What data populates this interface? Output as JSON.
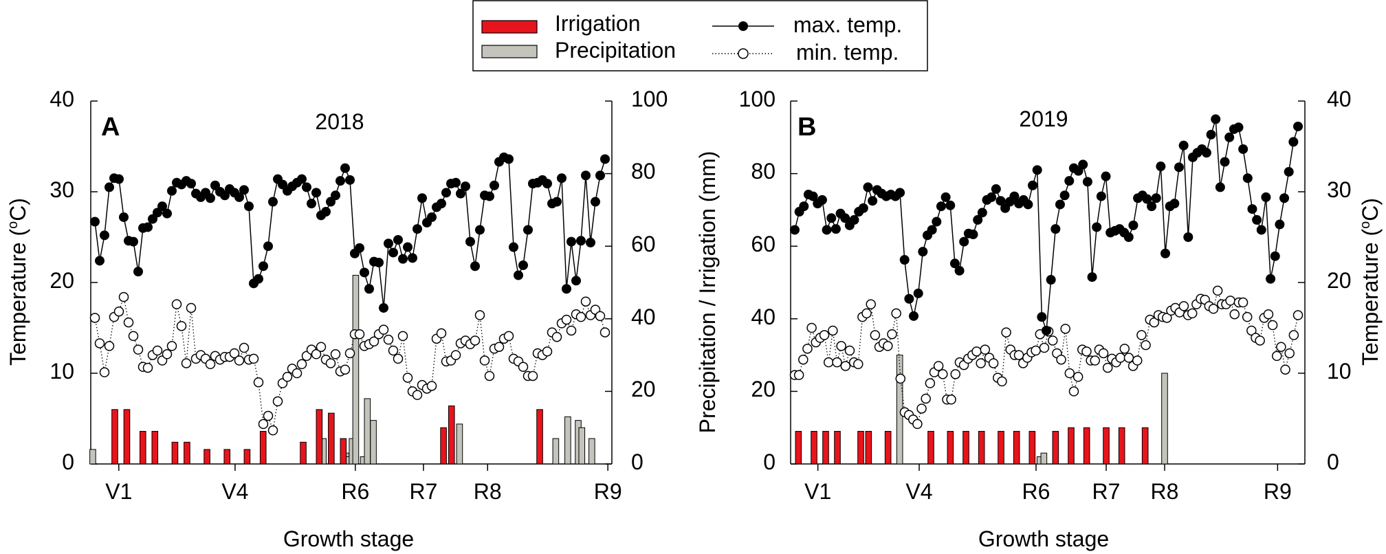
{
  "legend": {
    "irrigation": "Irrigation",
    "precipitation": "Precipitation",
    "max_temp": "max. temp.",
    "min_temp": "min. temp."
  },
  "colors": {
    "irrigation": "#e8141c",
    "precipitation": "#c4c4bc",
    "line": "#000000"
  },
  "chart_data": [
    {
      "type": "bar+line",
      "panel_label": "A",
      "title": "2018",
      "xlabel": "Growth stage",
      "ylabel_left": "Temperature (",
      "ylabel_left_sup": "o",
      "ylabel_left_end": "C)",
      "ylim_left": [
        0,
        40
      ],
      "yticks_left": [
        "0",
        "10",
        "20",
        "30",
        "40"
      ],
      "ylim_right": [
        0,
        100
      ],
      "yticks_right": [
        "0",
        "20",
        "40",
        "60",
        "80",
        "100"
      ],
      "n_days": 131,
      "stages": [
        {
          "label": "V1",
          "day": 7
        },
        {
          "label": "V4",
          "day": 36
        },
        {
          "label": "R6",
          "day": 66
        },
        {
          "label": "R7",
          "day": 83
        },
        {
          "label": "R8",
          "day": 99
        },
        {
          "label": "R9",
          "day": 129
        }
      ],
      "max_temp": [
        26.7,
        22.4,
        25.2,
        30.5,
        31.5,
        31.4,
        27.2,
        24.6,
        24.5,
        21.2,
        26.0,
        26.1,
        27.0,
        27.7,
        28.4,
        27.6,
        30.1,
        31.0,
        30.8,
        31.2,
        30.9,
        29.8,
        29.4,
        29.9,
        29.3,
        30.7,
        30.0,
        29.6,
        30.3,
        29.9,
        29.4,
        30.2,
        28.4,
        19.9,
        20.4,
        21.8,
        24.0,
        28.9,
        31.4,
        30.8,
        30.1,
        30.6,
        31.0,
        31.4,
        30.5,
        28.7,
        29.9,
        27.4,
        27.8,
        28.9,
        29.6,
        31.2,
        32.6,
        31.3,
        23.2,
        23.8,
        21.1,
        19.3,
        22.3,
        22.2,
        17.2,
        24.3,
        23.3,
        24.7,
        22.6,
        23.9,
        22.7,
        25.9,
        29.3,
        26.6,
        27.2,
        28.3,
        28.7,
        29.9,
        30.9,
        31.0,
        29.8,
        30.6,
        24.5,
        21.8,
        25.8,
        29.6,
        29.5,
        30.7,
        33.3,
        33.8,
        33.6,
        23.9,
        20.8,
        21.9,
        25.8,
        30.9,
        31.0,
        31.3,
        30.9,
        28.7,
        28.9,
        31.5,
        19.3,
        24.5,
        20.2,
        24.6,
        31.8,
        24.4,
        28.9,
        31.8,
        33.6
      ],
      "max_days": [
        0,
        1,
        2,
        3,
        4,
        5,
        6,
        7,
        8,
        9,
        10,
        11,
        12,
        13,
        14,
        15,
        16,
        17,
        18,
        19,
        20,
        21,
        22,
        23,
        24,
        25,
        26,
        27,
        28,
        29,
        30,
        31,
        32,
        33,
        34,
        35,
        36,
        37,
        38,
        39,
        40,
        41,
        42,
        43,
        44,
        45,
        46,
        47,
        48,
        49,
        50,
        51,
        52,
        53,
        54,
        55,
        56,
        57,
        58,
        59,
        60,
        61,
        62,
        63,
        64,
        65,
        66,
        67,
        68,
        69,
        70,
        71,
        72,
        73,
        74,
        75,
        76,
        77,
        78,
        79,
        80,
        81,
        82,
        83,
        84,
        85,
        86,
        87,
        88,
        89,
        90,
        91,
        92,
        93,
        94,
        95,
        96,
        97,
        98,
        99,
        100,
        101,
        102,
        103,
        104,
        105,
        106
      ],
      "min_temp": [
        16.1,
        13.3,
        10.1,
        13.0,
        16.2,
        16.8,
        18.4,
        15.6,
        14.1,
        12.6,
        10.7,
        10.6,
        12.0,
        12.5,
        11.4,
        12.1,
        13.0,
        17.6,
        15.2,
        11.1,
        17.2,
        11.6,
        12.0,
        11.6,
        11.0,
        11.9,
        11.5,
        11.8,
        11.8,
        12.2,
        11.4,
        12.8,
        11.5,
        11.6,
        9.0,
        4.4,
        5.3,
        3.7,
        6.9,
        8.9,
        9.6,
        10.5,
        10.0,
        11.0,
        11.9,
        12.6,
        12.1,
        12.9,
        11.5,
        11.1,
        12.1,
        10.2,
        10.4,
        12.2,
        14.3,
        14.3,
        13.0,
        13.2,
        13.5,
        14.3,
        14.8,
        13.7,
        12.5,
        11.6,
        14.1,
        9.5,
        8.0,
        7.6,
        8.7,
        8.3,
        8.6,
        13.8,
        14.4,
        11.3,
        11.4,
        12.0,
        13.3,
        13.6,
        13.2,
        13.6,
        16.4,
        11.4,
        9.7,
        12.7,
        12.9,
        13.8,
        14.1,
        11.6,
        11.3,
        10.7,
        9.7,
        9.7,
        12.2,
        12.0,
        12.4,
        14.5,
        14.0,
        15.5,
        15.9,
        14.7,
        16.5,
        16.2,
        17.9,
        16.4,
        17.0,
        16.3,
        14.5
      ],
      "irrigation": [
        {
          "day": 6,
          "value": 15
        },
        {
          "day": 9,
          "value": 15
        },
        {
          "day": 13,
          "value": 9
        },
        {
          "day": 16,
          "value": 9
        },
        {
          "day": 21,
          "value": 6
        },
        {
          "day": 24,
          "value": 6
        },
        {
          "day": 29,
          "value": 4
        },
        {
          "day": 34,
          "value": 4
        },
        {
          "day": 39,
          "value": 4
        },
        {
          "day": 43,
          "value": 9
        },
        {
          "day": 53,
          "value": 6
        },
        {
          "day": 57,
          "value": 15
        },
        {
          "day": 60,
          "value": 14
        },
        {
          "day": 63,
          "value": 7
        },
        {
          "day": 88,
          "value": 10
        },
        {
          "day": 90,
          "value": 16
        },
        {
          "day": 112,
          "value": 15
        }
      ],
      "precipitation": [
        {
          "day": 0.5,
          "value": 4
        },
        {
          "day": 58,
          "value": 7
        },
        {
          "day": 63.7,
          "value": 3
        },
        {
          "day": 64.4,
          "value": 2
        },
        {
          "day": 65.2,
          "value": 7
        },
        {
          "day": 66.1,
          "value": 52
        },
        {
          "day": 68,
          "value": 2
        },
        {
          "day": 69,
          "value": 18
        },
        {
          "day": 70.5,
          "value": 12
        },
        {
          "day": 92,
          "value": 11
        },
        {
          "day": 116,
          "value": 7
        },
        {
          "day": 119,
          "value": 13
        },
        {
          "day": 121.6,
          "value": 12
        },
        {
          "day": 122.5,
          "value": 10
        },
        {
          "day": 125,
          "value": 7
        }
      ]
    },
    {
      "type": "bar+line",
      "panel_label": "B",
      "title": "2019",
      "xlabel": "Growth stage",
      "ylabel_left": "Precipitation / Irrigation (mm)",
      "ylim_left": [
        0,
        100
      ],
      "yticks_left": [
        "0",
        "20",
        "40",
        "60",
        "80",
        "100"
      ],
      "ylabel_right": "Temperature (",
      "ylabel_right_sup": "o",
      "ylabel_right_end": "C)",
      "ylim_right": [
        0,
        40
      ],
      "yticks_right": [
        "0",
        "10",
        "20",
        "30",
        "40"
      ],
      "n_days": 133,
      "stages": [
        {
          "label": "V1",
          "day": 7
        },
        {
          "label": "V4",
          "day": 33
        },
        {
          "label": "R6",
          "day": 63
        },
        {
          "label": "R7",
          "day": 81
        },
        {
          "label": "R8",
          "day": 96
        },
        {
          "label": "R9",
          "day": 125
        }
      ],
      "max_temp": [
        25.8,
        27.8,
        28.4,
        29.7,
        29.5,
        28.7,
        29.1,
        25.8,
        27.1,
        25.9,
        27.6,
        27.1,
        26.3,
        26.9,
        27.8,
        28.2,
        30.5,
        29.0,
        30.2,
        29.8,
        29.5,
        29.7,
        29.5,
        29.9,
        22.5,
        18.2,
        16.3,
        18.8,
        23.4,
        25.2,
        25.8,
        26.7,
        28.4,
        29.4,
        28.5,
        22.1,
        21.3,
        24.5,
        25.4,
        25.3,
        26.9,
        27.7,
        29.1,
        29.4,
        30.3,
        29.0,
        28.2,
        28.9,
        29.5,
        28.7,
        29.1,
        28.6,
        30.7,
        32.4,
        16.2,
        14.7,
        20.3,
        25.9,
        28.6,
        29.6,
        31.2,
        32.6,
        32.3,
        33.0,
        31.1,
        20.6,
        26.1,
        29.5,
        31.7,
        25.5,
        25.7,
        25.9,
        25.5,
        25.0,
        26.3,
        29.3,
        29.6,
        29.2,
        28.4,
        29.3,
        32.8,
        23.2,
        28.4,
        28.7,
        32.7,
        35.1,
        25.0,
        33.8,
        34.3,
        34.7,
        34.3,
        36.3,
        38.0,
        30.5,
        33.3,
        36.0,
        36.9,
        37.1,
        34.7,
        31.5,
        28.1,
        26.9,
        25.8,
        29.4,
        20.4,
        22.9,
        26.4,
        29.3,
        32.2,
        35.5,
        37.2
      ],
      "max_days": [
        0,
        1,
        2,
        3,
        4,
        5,
        6,
        7,
        8,
        9,
        10,
        11,
        12,
        13,
        14,
        15,
        16,
        17,
        18,
        19,
        20,
        21,
        22,
        23,
        24,
        25,
        26,
        27,
        28,
        29,
        30,
        31,
        32,
        33,
        34,
        35,
        36,
        37,
        38,
        39,
        40,
        41,
        42,
        43,
        44,
        45,
        46,
        47,
        48,
        49,
        50,
        51,
        52,
        53,
        54,
        55,
        56,
        57,
        58,
        59,
        60,
        61,
        62,
        63,
        64,
        65,
        66,
        67,
        68,
        69,
        70,
        71,
        72,
        73,
        74,
        75,
        76,
        77,
        78,
        79,
        80,
        81,
        82,
        83,
        84,
        85,
        86,
        87,
        88,
        89,
        90,
        91,
        92,
        93,
        94,
        95,
        96,
        97,
        98,
        99,
        100,
        101,
        102,
        103,
        104,
        105,
        106,
        107,
        108,
        109,
        110
      ],
      "min_temp": [
        9.8,
        9.8,
        11.5,
        12.7,
        15.0,
        13.4,
        13.9,
        14.2,
        11.2,
        14.7,
        11.2,
        13.0,
        10.8,
        12.5,
        11.2,
        11.0,
        16.2,
        16.6,
        17.6,
        14.2,
        12.9,
        13.3,
        13.0,
        14.3,
        16.6,
        9.4,
        5.7,
        5.4,
        4.9,
        4.4,
        6.1,
        7.2,
        8.9,
        10.1,
        10.8,
        9.9,
        7.1,
        7.1,
        9.9,
        11.2,
        10.9,
        11.6,
        12.0,
        12.4,
        11.1,
        12.6,
        11.7,
        11.1,
        9.5,
        9.1,
        14.5,
        12.6,
        12.0,
        12.0,
        11.1,
        11.7,
        12.3,
        12.5,
        14.3,
        12.8,
        14.6,
        13.6,
        12.2,
        11.5,
        14.9,
        10.0,
        8.0,
        9.6,
        12.6,
        12.4,
        11.4,
        11.4,
        12.6,
        12.2,
        10.6,
        11.6,
        11.2,
        11.7,
        12.7,
        11.7,
        10.8,
        11.4,
        14.2,
        13.1,
        15.9,
        15.6,
        16.4,
        16.2,
        16.1,
        16.9,
        17.2,
        16.7,
        17.4,
        16.4,
        16.6,
        17.6,
        18.2,
        18.1,
        17.4,
        17.1,
        19.1,
        17.6,
        17.6,
        18.0,
        16.5,
        17.8,
        17.8,
        16.2,
        14.7,
        13.9,
        13.6,
        16.1,
        16.5,
        15.3,
        11.9,
        12.9,
        10.4,
        12.2,
        14.2,
        16.4
      ],
      "irrigation": [
        {
          "day": 2,
          "value": 9
        },
        {
          "day": 6,
          "value": 9
        },
        {
          "day": 9,
          "value": 9
        },
        {
          "day": 12,
          "value": 9
        },
        {
          "day": 18,
          "value": 9
        },
        {
          "day": 20,
          "value": 9
        },
        {
          "day": 25,
          "value": 9
        },
        {
          "day": 36,
          "value": 9
        },
        {
          "day": 41,
          "value": 9
        },
        {
          "day": 45,
          "value": 9
        },
        {
          "day": 49,
          "value": 9
        },
        {
          "day": 54,
          "value": 9
        },
        {
          "day": 58,
          "value": 9
        },
        {
          "day": 62,
          "value": 9
        },
        {
          "day": 68,
          "value": 9
        },
        {
          "day": 72,
          "value": 10
        },
        {
          "day": 76,
          "value": 10
        },
        {
          "day": 81,
          "value": 10
        },
        {
          "day": 85,
          "value": 10
        },
        {
          "day": 91,
          "value": 10
        }
      ],
      "precipitation": [
        {
          "day": 28,
          "value": 30
        },
        {
          "day": 64,
          "value": 2
        },
        {
          "day": 65,
          "value": 3
        },
        {
          "day": 96,
          "value": 25
        }
      ]
    }
  ]
}
